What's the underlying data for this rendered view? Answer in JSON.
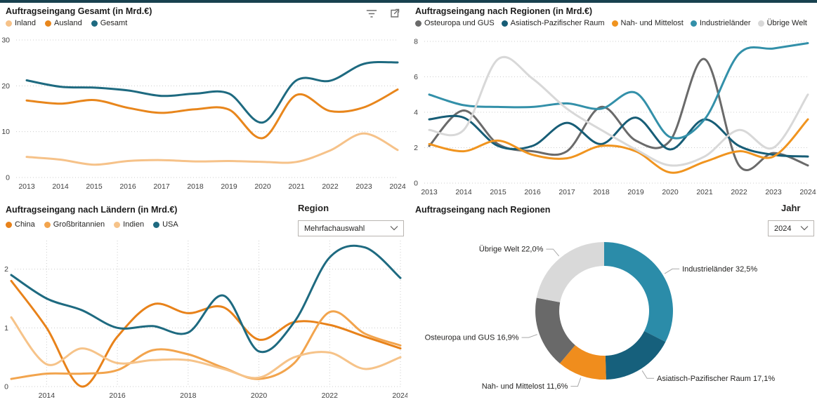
{
  "app": {
    "accent_bar_color": "#18414F"
  },
  "icons": {
    "filter-icon": "three horizontal lines of decreasing width",
    "focus-mode-icon": "square with diagonal arrow to top-right",
    "chevron-down-icon": "v"
  },
  "filters": {
    "region": {
      "label": "Region",
      "value": "Mehrfachauswahl"
    },
    "jahr": {
      "label": "Jahr",
      "value": "2024"
    }
  },
  "chart_data": [
    {
      "type": "line",
      "title": "Auftragseingang Gesamt (in Mrd.€)",
      "x": [
        2013,
        2014,
        2015,
        2016,
        2017,
        2018,
        2019,
        2020,
        2021,
        2022,
        2023,
        2024
      ],
      "xticks": [
        2013,
        2014,
        2015,
        2016,
        2017,
        2018,
        2019,
        2020,
        2021,
        2022,
        2023,
        2024
      ],
      "ylim": [
        0,
        30
      ],
      "yticks": [
        0,
        10,
        20,
        30
      ],
      "vgrid": false,
      "hgrid": true,
      "legend_position": "top",
      "series": [
        {
          "name": "Inland",
          "color": "#F6C289",
          "values": [
            4.5,
            3.9,
            2.8,
            3.6,
            3.8,
            3.5,
            3.6,
            3.4,
            3.4,
            5.9,
            9.6,
            6.0
          ]
        },
        {
          "name": "Ausland",
          "color": "#E8861C",
          "values": [
            16.8,
            16.1,
            16.9,
            15.2,
            14.1,
            14.9,
            14.8,
            8.6,
            18.0,
            14.5,
            15.3,
            19.2
          ]
        },
        {
          "name": "Gesamt",
          "color": "#1E6A80",
          "values": [
            21.2,
            19.8,
            19.6,
            19.0,
            17.8,
            18.3,
            18.3,
            12.0,
            21.2,
            21.1,
            24.8,
            25.1
          ]
        }
      ]
    },
    {
      "type": "line",
      "title": "Auftragseingang nach Regionen (in Mrd.€)",
      "x": [
        2013,
        2014,
        2015,
        2016,
        2017,
        2018,
        2019,
        2020,
        2021,
        2022,
        2023,
        2024
      ],
      "xticks": [
        2013,
        2014,
        2015,
        2016,
        2017,
        2018,
        2019,
        2020,
        2021,
        2022,
        2023,
        2024
      ],
      "ylim": [
        0,
        8
      ],
      "yticks": [
        0,
        2,
        4,
        6,
        8
      ],
      "vgrid": false,
      "hgrid": true,
      "legend_position": "top",
      "series": [
        {
          "name": "Osteuropa und GUS",
          "color": "#6A6A6A",
          "values": [
            2.1,
            4.1,
            2.2,
            1.8,
            1.8,
            4.3,
            2.4,
            2.4,
            7.0,
            1.0,
            1.7,
            1.0
          ]
        },
        {
          "name": "Asiatisch-Pazifischer Raum",
          "color": "#175D76",
          "values": [
            3.6,
            3.7,
            2.1,
            2.1,
            3.4,
            2.2,
            3.7,
            1.9,
            3.6,
            2.1,
            1.6,
            1.5
          ]
        },
        {
          "name": "Nah- und Mittelost",
          "color": "#F0941F",
          "values": [
            2.2,
            1.8,
            2.4,
            1.6,
            1.4,
            2.1,
            1.8,
            0.6,
            1.2,
            1.8,
            1.5,
            3.6
          ]
        },
        {
          "name": "Industrieländer",
          "color": "#3390A9",
          "values": [
            5.0,
            4.4,
            4.3,
            4.3,
            4.5,
            4.2,
            5.1,
            2.6,
            3.6,
            7.3,
            7.6,
            7.9
          ]
        },
        {
          "name": "Übrige Welt",
          "color": "#D8D8D8",
          "values": [
            3.0,
            3.0,
            7.0,
            5.9,
            4.2,
            3.0,
            1.9,
            1.0,
            1.5,
            3.0,
            2.0,
            5.0
          ]
        }
      ]
    },
    {
      "type": "line",
      "title": "Auftragseingang nach Ländern (in Mrd.€)",
      "x": [
        2013,
        2014,
        2015,
        2016,
        2017,
        2018,
        2019,
        2020,
        2021,
        2022,
        2023,
        2024
      ],
      "xticks": [
        2014,
        2016,
        2018,
        2020,
        2022,
        2024
      ],
      "ylim": [
        0,
        2.45
      ],
      "yticks": [
        0,
        1,
        2
      ],
      "vgrid": true,
      "hgrid": true,
      "legend_position": "top",
      "series": [
        {
          "name": "China",
          "color": "#E8821A",
          "values": [
            1.8,
            1.0,
            0.0,
            0.85,
            1.4,
            1.25,
            1.35,
            0.8,
            1.1,
            1.05,
            0.85,
            0.65
          ]
        },
        {
          "name": "Großbritannien",
          "color": "#F2A44D",
          "values": [
            0.13,
            0.22,
            0.22,
            0.28,
            0.62,
            0.55,
            0.32,
            0.13,
            0.4,
            1.27,
            0.9,
            0.7
          ]
        },
        {
          "name": "Indien",
          "color": "#F6C389",
          "values": [
            1.18,
            0.38,
            0.65,
            0.4,
            0.45,
            0.45,
            0.3,
            0.15,
            0.5,
            0.58,
            0.3,
            0.5
          ]
        },
        {
          "name": "USA",
          "color": "#1E6A80",
          "values": [
            1.9,
            1.5,
            1.3,
            1.0,
            1.03,
            0.92,
            1.55,
            0.6,
            1.1,
            2.2,
            2.37,
            1.85
          ]
        }
      ]
    },
    {
      "type": "pie",
      "subtype": "donut",
      "title": "Auftragseingang nach Regionen",
      "start_at_top_clockwise": true,
      "slices": [
        {
          "name": "Industrieländer",
          "pct": 32.5,
          "label": "Industrieländer 32,5%",
          "color": "#2B8CA9"
        },
        {
          "name": "Asiatisch-Pazifischer Raum",
          "pct": 17.1,
          "label": "Asiatisch-Pazifischer Raum 17,1%",
          "color": "#16607C"
        },
        {
          "name": "Nah- und Mittelost",
          "pct": 11.6,
          "label": "Nah- und Mittelost 11,6%",
          "color": "#F08D1D"
        },
        {
          "name": "Osteuropa und GUS",
          "pct": 16.9,
          "label": "Osteuropa und GUS 16,9%",
          "color": "#696969"
        },
        {
          "name": "Übrige Welt",
          "pct": 22.0,
          "label": "Übrige Welt 22,0%",
          "color": "#D9D9D9"
        }
      ]
    }
  ]
}
